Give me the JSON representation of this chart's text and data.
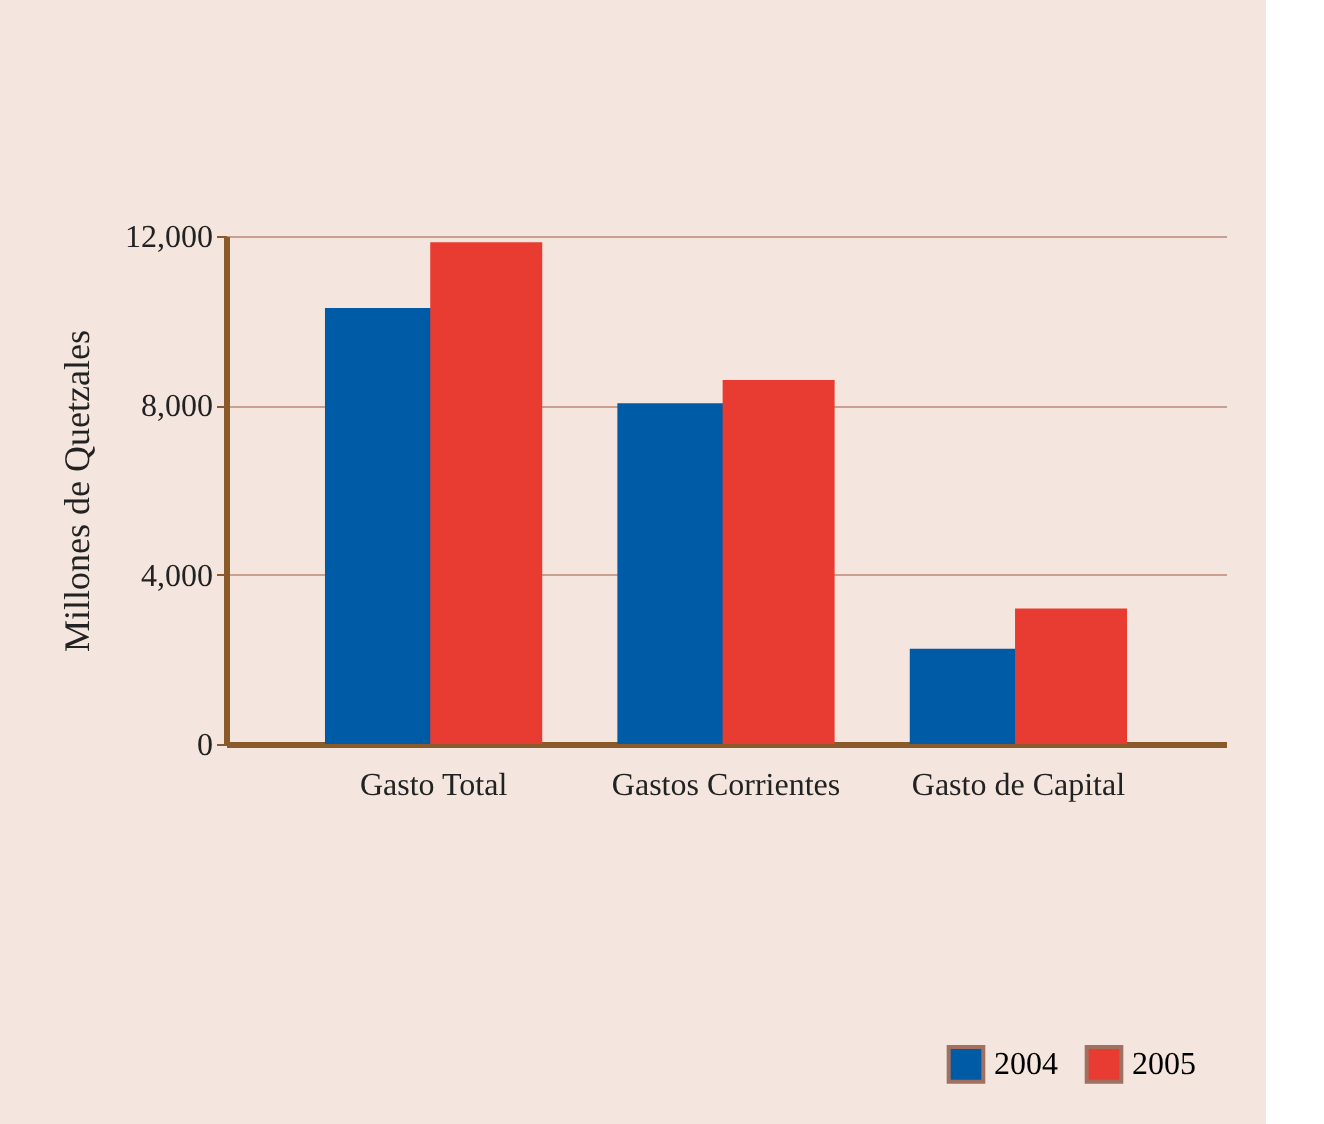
{
  "chart_data": {
    "type": "bar",
    "ylabel": "Millones de Quetzales",
    "categories": [
      "Gasto Total",
      "Gastos Corrientes",
      "Gasto de Capital"
    ],
    "series": [
      {
        "name": "2004",
        "color": "#005ba6",
        "values": [
          10300,
          8050,
          2250
        ]
      },
      {
        "name": "2005",
        "color": "#e83c32",
        "values": [
          11850,
          8600,
          3200
        ]
      }
    ],
    "ylim": [
      0,
      12000
    ],
    "yticks": [
      {
        "value": 0,
        "label": "0"
      },
      {
        "value": 4000,
        "label": "4,000"
      },
      {
        "value": 8000,
        "label": "8,000"
      },
      {
        "value": 12000,
        "label": "12,000"
      }
    ],
    "grid": "y",
    "legend": "bottom right"
  }
}
